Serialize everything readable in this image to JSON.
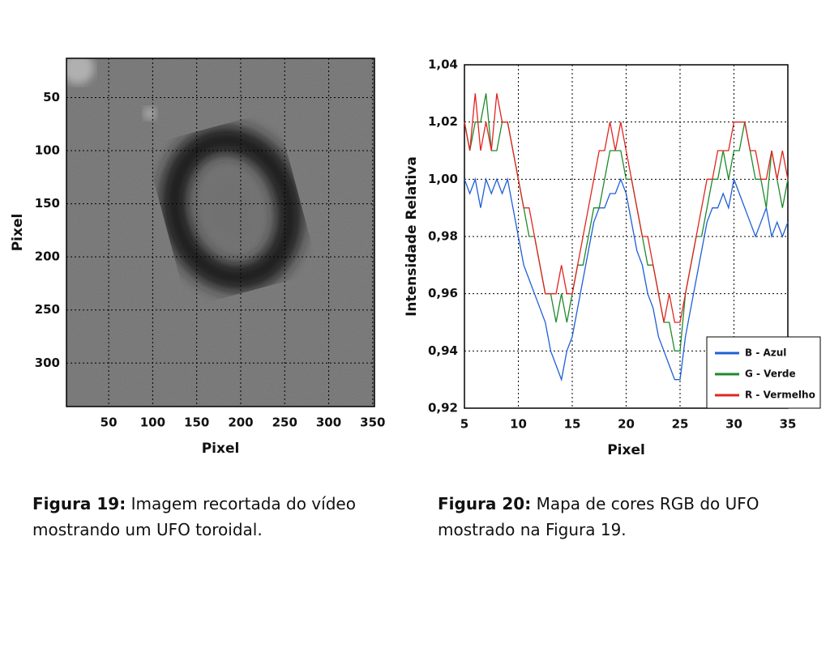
{
  "chart_data": [
    {
      "type": "image",
      "xlabel": "Pixel",
      "ylabel": "Pixel",
      "xlim": [
        2,
        352
      ],
      "ylim": [
        341,
        13
      ],
      "xticks": [
        50,
        100,
        150,
        200,
        250,
        300,
        350
      ],
      "yticks": [
        50,
        100,
        150,
        200,
        250,
        300
      ],
      "grid": true,
      "caption": {
        "label": "Figura 19:",
        "text": "Imagem recortada do vídeo mostrando um UFO toroidal."
      }
    },
    {
      "type": "line",
      "xlabel": "Pixel",
      "ylabel": "Intensidade Relativa",
      "xlim": [
        5,
        35
      ],
      "ylim": [
        0.92,
        1.04
      ],
      "xticks": [
        5,
        10,
        15,
        20,
        25,
        30,
        35
      ],
      "yticks": [
        {
          "value": 0.92,
          "label": "0,92"
        },
        {
          "value": 0.94,
          "label": "0,94"
        },
        {
          "value": 0.96,
          "label": "0,96"
        },
        {
          "value": 0.98,
          "label": "0,98"
        },
        {
          "value": 1.0,
          "label": "1,00"
        },
        {
          "value": 1.02,
          "label": "1,02"
        },
        {
          "value": 1.04,
          "label": "1,04"
        }
      ],
      "grid": true,
      "legend": "lower right",
      "x": [
        5,
        5.5,
        6,
        6.5,
        7,
        7.5,
        8,
        8.5,
        9,
        9.5,
        10,
        10.5,
        11,
        11.5,
        12,
        12.5,
        13,
        13.5,
        14,
        14.5,
        15,
        15.5,
        16,
        16.5,
        17,
        17.5,
        18,
        18.5,
        19,
        19.5,
        20,
        20.5,
        21,
        21.5,
        22,
        22.5,
        23,
        23.5,
        24,
        24.5,
        25,
        25.5,
        26,
        26.5,
        27,
        27.5,
        28,
        28.5,
        29,
        29.5,
        30,
        30.5,
        31,
        31.5,
        32,
        32.5,
        33,
        33.5,
        34,
        34.5,
        35
      ],
      "series": [
        {
          "name": "B - Azul",
          "color": "#1f5fd6",
          "values": [
            1.0,
            0.995,
            1.0,
            0.99,
            1.0,
            0.995,
            1.0,
            0.995,
            1.0,
            0.99,
            0.98,
            0.97,
            0.965,
            0.96,
            0.955,
            0.95,
            0.94,
            0.935,
            0.93,
            0.94,
            0.945,
            0.955,
            0.965,
            0.975,
            0.985,
            0.99,
            0.99,
            0.995,
            0.995,
            1.0,
            0.995,
            0.985,
            0.975,
            0.97,
            0.96,
            0.955,
            0.945,
            0.94,
            0.935,
            0.93,
            0.93,
            0.945,
            0.955,
            0.965,
            0.975,
            0.985,
            0.99,
            0.99,
            0.995,
            0.99,
            1.0,
            0.995,
            0.99,
            0.985,
            0.98,
            0.985,
            0.99,
            0.98,
            0.985,
            0.98,
            0.985
          ]
        },
        {
          "name": "G - Verde",
          "color": "#1d8a2a",
          "values": [
            1.02,
            1.01,
            1.02,
            1.02,
            1.03,
            1.01,
            1.01,
            1.02,
            1.02,
            1.01,
            1.0,
            0.99,
            0.98,
            0.98,
            0.97,
            0.96,
            0.96,
            0.95,
            0.96,
            0.95,
            0.96,
            0.97,
            0.97,
            0.98,
            0.99,
            0.99,
            1.0,
            1.01,
            1.01,
            1.01,
            1.0,
            1.0,
            0.99,
            0.98,
            0.97,
            0.97,
            0.96,
            0.95,
            0.95,
            0.94,
            0.94,
            0.96,
            0.97,
            0.98,
            0.98,
            0.99,
            1.0,
            1.0,
            1.01,
            1.0,
            1.01,
            1.01,
            1.02,
            1.01,
            1.0,
            1.0,
            0.99,
            1.01,
            1.0,
            0.99,
            1.0
          ]
        },
        {
          "name": "R - Vermelho",
          "color": "#e0261f",
          "values": [
            1.02,
            1.01,
            1.03,
            1.01,
            1.02,
            1.01,
            1.03,
            1.02,
            1.02,
            1.01,
            1.0,
            0.99,
            0.99,
            0.98,
            0.97,
            0.96,
            0.96,
            0.96,
            0.97,
            0.96,
            0.96,
            0.97,
            0.98,
            0.99,
            1.0,
            1.01,
            1.01,
            1.02,
            1.01,
            1.02,
            1.01,
            1.0,
            0.99,
            0.98,
            0.98,
            0.97,
            0.96,
            0.95,
            0.96,
            0.95,
            0.95,
            0.96,
            0.97,
            0.98,
            0.99,
            1.0,
            1.0,
            1.01,
            1.01,
            1.01,
            1.02,
            1.02,
            1.02,
            1.01,
            1.01,
            1.0,
            1.0,
            1.01,
            1.0,
            1.01,
            1.0
          ]
        }
      ],
      "caption": {
        "label": "Figura 20:",
        "text": "Mapa de cores RGB do UFO mostrado na Figura 19."
      }
    }
  ]
}
